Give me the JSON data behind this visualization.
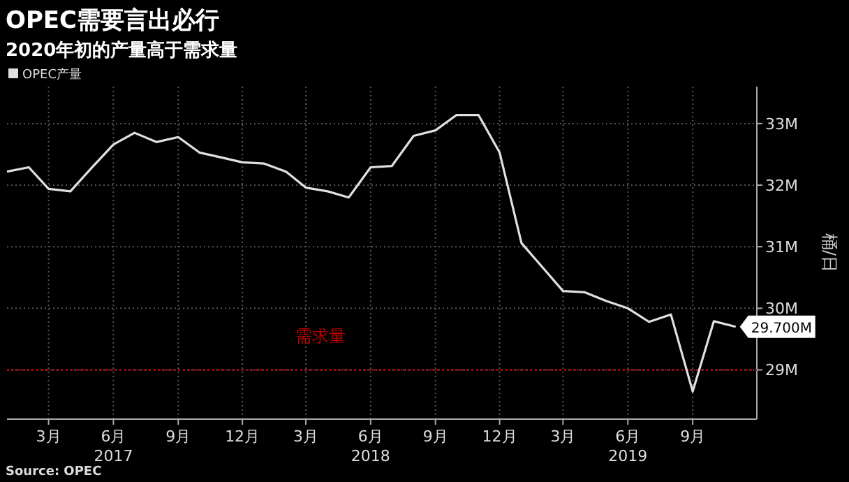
{
  "chart_data": {
    "type": "line",
    "title": "OPEC需要言出必行",
    "subtitle": "2020年初的产量高于需求量",
    "ylabel": "桶/日",
    "annotations": [
      "Source: OPEC"
    ],
    "x": [
      "2017-01",
      "2017-02",
      "2017-03",
      "2017-04",
      "2017-05",
      "2017-06",
      "2017-07",
      "2017-08",
      "2017-09",
      "2017-10",
      "2017-11",
      "2017-12",
      "2018-01",
      "2018-02",
      "2018-03",
      "2018-04",
      "2018-05",
      "2018-06",
      "2018-07",
      "2018-08",
      "2018-09",
      "2018-10",
      "2018-11",
      "2018-12",
      "2019-01",
      "2019-02",
      "2019-03",
      "2019-04",
      "2019-05",
      "2019-06",
      "2019-07",
      "2019-08",
      "2019-09",
      "2019-10",
      "2019-11"
    ],
    "series": [
      {
        "name": "OPEC产量",
        "color": "#e0e0e0",
        "values": [
          32.22,
          32.29,
          31.94,
          31.9,
          32.28,
          32.66,
          32.85,
          32.7,
          32.78,
          32.53,
          32.45,
          32.37,
          32.35,
          32.22,
          31.96,
          31.9,
          31.8,
          32.29,
          32.31,
          32.8,
          32.89,
          33.14,
          33.14,
          32.53,
          31.06,
          30.65,
          30.28,
          30.26,
          30.12,
          30.0,
          29.78,
          29.9,
          28.65,
          29.79,
          29.7
        ],
        "value_labels": [
          null,
          null,
          null,
          null,
          null,
          null,
          null,
          null,
          null,
          null,
          null,
          null,
          null,
          null,
          null,
          null,
          null,
          null,
          null,
          null,
          null,
          null,
          null,
          null,
          null,
          null,
          null,
          null,
          null,
          null,
          null,
          null,
          null,
          null,
          "29.700M"
        ]
      }
    ],
    "xlim": [
      "2017-01",
      "2019-12"
    ],
    "xticks": [
      {
        "value": "2017-03",
        "label": "3月"
      },
      {
        "value": "2017-06",
        "label": "6月\n2017"
      },
      {
        "value": "2017-09",
        "label": "9月"
      },
      {
        "value": "2017-12",
        "label": "12月"
      },
      {
        "value": "2018-03",
        "label": "3月"
      },
      {
        "value": "2018-06",
        "label": "6月\n2018"
      },
      {
        "value": "2018-09",
        "label": "9月"
      },
      {
        "value": "2018-12",
        "label": "12月"
      },
      {
        "value": "2019-03",
        "label": "3月"
      },
      {
        "value": "2019-06",
        "label": "6月\n2019"
      },
      {
        "value": "2019-09",
        "label": "9月"
      }
    ],
    "ylim": [
      28.2,
      33.6
    ],
    "yticks": [
      {
        "value": 29,
        "label": "29M"
      },
      {
        "value": 30,
        "label": "30M"
      },
      {
        "value": 31,
        "label": "31M"
      },
      {
        "value": 32,
        "label": "32M"
      },
      {
        "value": 33,
        "label": "33M"
      }
    ],
    "ref_lines": [
      {
        "axis": "y",
        "value": 29,
        "label": "需求量",
        "color": "#c00000",
        "line_style": "dotted"
      }
    ],
    "grid": true,
    "legend": "top left",
    "marker": "none",
    "line_style": "solid"
  }
}
